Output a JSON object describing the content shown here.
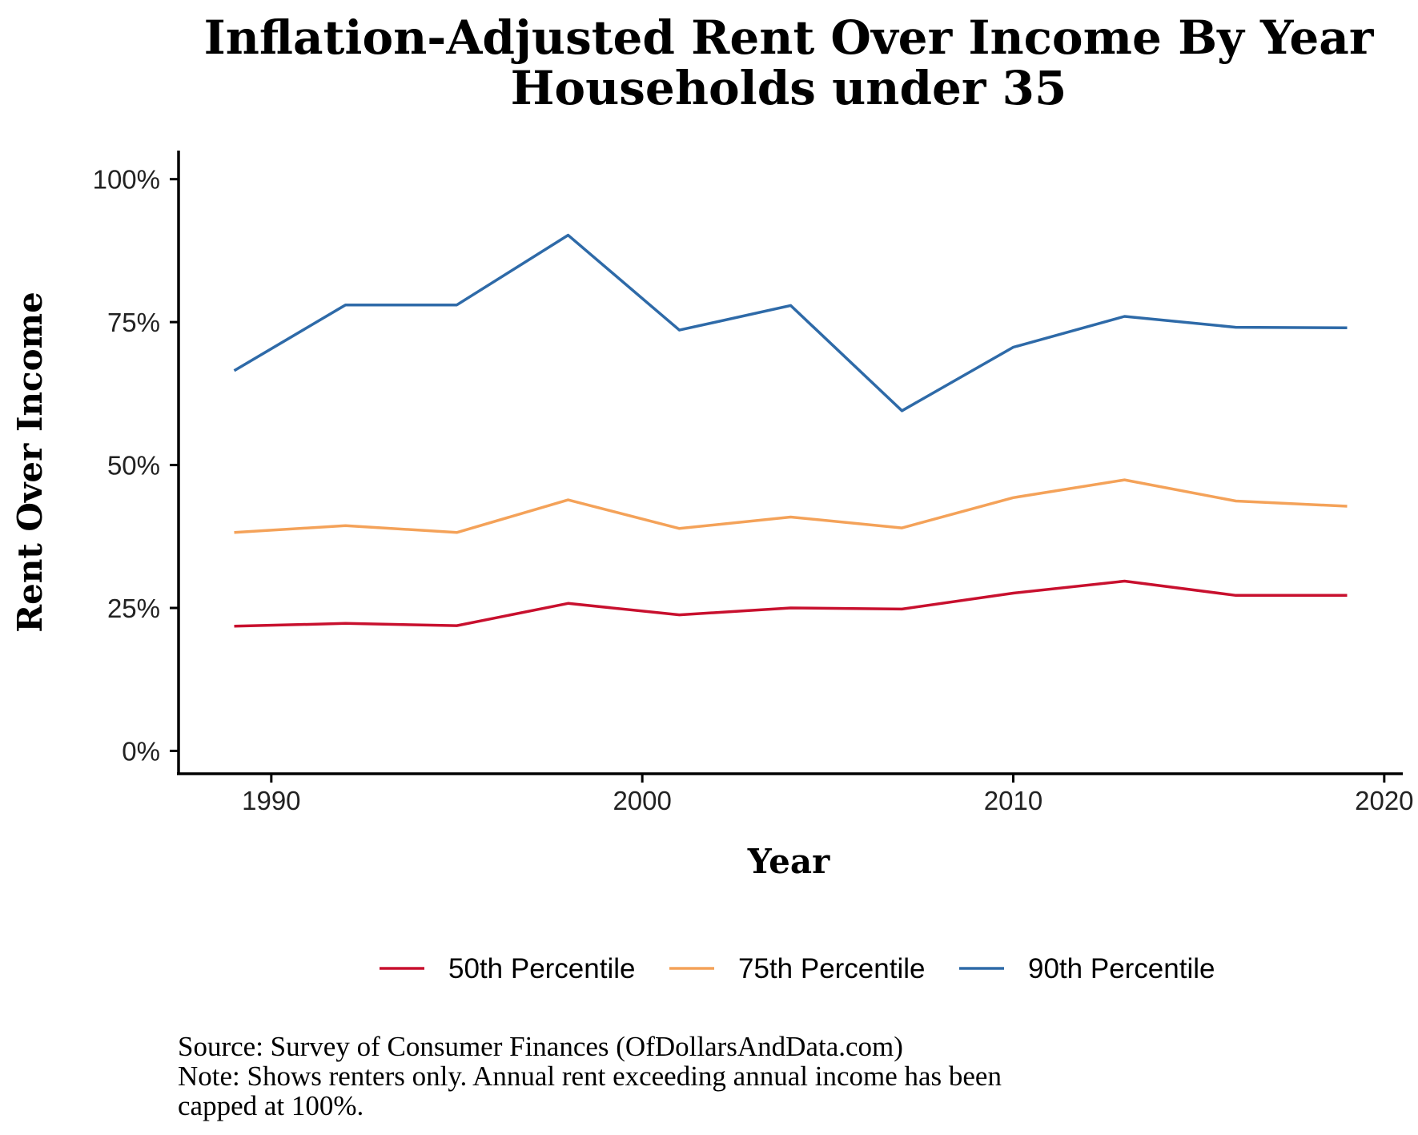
{
  "chart_data": {
    "type": "line",
    "title_lines": [
      "Inflation-Adjusted Rent Over Income By Year",
      "Households under 35"
    ],
    "xlabel": "Year",
    "ylabel": "Rent Over Income",
    "xlim": [
      1987.5,
      2020.5
    ],
    "ylim": [
      -0.04,
      1.05
    ],
    "x_ticks": [
      1990,
      2000,
      2010,
      2020
    ],
    "x_tick_labels": [
      "1990",
      "2000",
      "2010",
      "2020"
    ],
    "y_ticks": [
      0,
      0.25,
      0.5,
      0.75,
      1.0
    ],
    "y_tick_labels": [
      "0%",
      "25%",
      "50%",
      "75%",
      "100%"
    ],
    "grid": false,
    "legend_position": "bottom",
    "x": [
      1989,
      1992,
      1995,
      1998,
      2001,
      2004,
      2007,
      2010,
      2013,
      2016,
      2019
    ],
    "series": [
      {
        "name": "50th Percentile",
        "color": "#c8102e",
        "values": [
          0.218,
          0.223,
          0.219,
          0.258,
          0.238,
          0.25,
          0.248,
          0.276,
          0.297,
          0.272,
          0.272
        ]
      },
      {
        "name": "75th Percentile",
        "color": "#f4a259",
        "values": [
          0.382,
          0.394,
          0.382,
          0.439,
          0.389,
          0.409,
          0.39,
          0.443,
          0.474,
          0.437,
          0.428
        ]
      },
      {
        "name": "90th Percentile",
        "color": "#2e6aa8",
        "values": [
          0.665,
          0.78,
          0.78,
          0.902,
          0.736,
          0.779,
          0.595,
          0.706,
          0.76,
          0.741,
          0.74
        ]
      }
    ]
  },
  "caption": {
    "source": "Source:  Survey of Consumer Finances (OfDollarsAndData.com)",
    "note_line1": "Note: Shows renters only. Annual rent exceeding annual income has been",
    "note_line2": "capped at 100%."
  }
}
